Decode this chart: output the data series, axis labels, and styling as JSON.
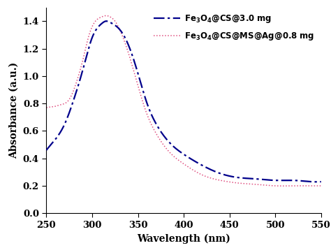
{
  "xlabel": "Wavelength (nm)",
  "ylabel": "Absorbance (a.u.)",
  "xlim": [
    250,
    550
  ],
  "ylim": [
    0,
    1.5
  ],
  "yticks": [
    0,
    0.2,
    0.4,
    0.6,
    0.8,
    1.0,
    1.2,
    1.4
  ],
  "xticks": [
    250,
    300,
    350,
    400,
    450,
    500,
    550
  ],
  "legend1_parts": [
    "Fe",
    "3",
    "O",
    "4",
    "@CS@3.0 mg"
  ],
  "legend2_parts": [
    "Fe",
    "3",
    "O",
    "4",
    "@CS@MS@Ag@0.8 mg"
  ],
  "color1": "#00008B",
  "color2": "#E05080",
  "background": "#ffffff",
  "blue_wl": [
    250,
    260,
    270,
    280,
    290,
    300,
    310,
    315,
    320,
    330,
    340,
    350,
    360,
    370,
    380,
    390,
    400,
    420,
    440,
    460,
    480,
    500,
    520,
    540,
    550
  ],
  "blue_abs": [
    0.46,
    0.54,
    0.65,
    0.83,
    1.05,
    1.28,
    1.38,
    1.4,
    1.39,
    1.34,
    1.22,
    1.02,
    0.8,
    0.65,
    0.55,
    0.48,
    0.43,
    0.35,
    0.29,
    0.26,
    0.25,
    0.24,
    0.24,
    0.23,
    0.23
  ],
  "red_wl": [
    250,
    255,
    260,
    265,
    270,
    275,
    280,
    285,
    290,
    295,
    300,
    305,
    310,
    315,
    320,
    325,
    330,
    340,
    350,
    360,
    370,
    380,
    390,
    400,
    420,
    440,
    460,
    480,
    500,
    520,
    540,
    550
  ],
  "red_abs": [
    0.77,
    0.775,
    0.78,
    0.79,
    0.8,
    0.83,
    0.9,
    1.0,
    1.12,
    1.26,
    1.36,
    1.41,
    1.43,
    1.44,
    1.43,
    1.4,
    1.34,
    1.16,
    0.93,
    0.72,
    0.58,
    0.48,
    0.41,
    0.36,
    0.28,
    0.24,
    0.22,
    0.21,
    0.2,
    0.2,
    0.2,
    0.2
  ]
}
